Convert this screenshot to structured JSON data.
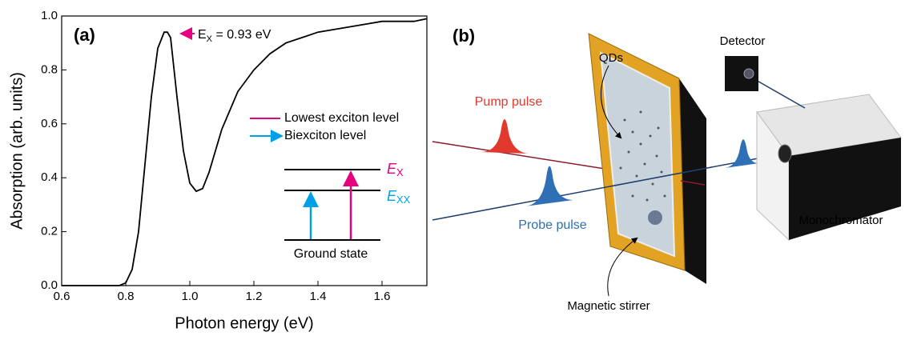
{
  "chart_data": {
    "type": "line",
    "panel_label": "(a)",
    "x_label": "Photon energy (eV)",
    "y_label": "Absorption (arb. units)",
    "xlim": [
      0.6,
      1.74
    ],
    "ylim": [
      0,
      1
    ],
    "xticks": [
      0.6,
      0.8,
      {
        "value": 1,
        "label": "1.0"
      },
      1.2,
      1.4,
      1.6
    ],
    "yticks": [
      {
        "value": 0,
        "label": "0.0"
      },
      0.2,
      0.4,
      0.6,
      0.8,
      {
        "value": 1,
        "label": "1.0"
      }
    ],
    "x": [
      0.6,
      0.7,
      0.78,
      0.8,
      0.82,
      0.84,
      0.86,
      0.88,
      0.9,
      0.92,
      0.93,
      0.94,
      0.96,
      0.98,
      1.0,
      1.02,
      1.04,
      1.06,
      1.08,
      1.1,
      1.15,
      1.2,
      1.25,
      1.3,
      1.35,
      1.4,
      1.45,
      1.5,
      1.55,
      1.6,
      1.65,
      1.7,
      1.74
    ],
    "series": [
      {
        "color": "#000000",
        "values": [
          0.0,
          0.0,
          0.0,
          0.01,
          0.06,
          0.2,
          0.45,
          0.7,
          0.88,
          0.94,
          0.94,
          0.92,
          0.7,
          0.5,
          0.38,
          0.35,
          0.36,
          0.42,
          0.5,
          0.58,
          0.72,
          0.8,
          0.86,
          0.9,
          0.92,
          0.94,
          0.95,
          0.96,
          0.97,
          0.98,
          0.98,
          0.98,
          0.99
        ]
      }
    ],
    "peak_label": {
      "symbol": "E",
      "subscript": "X",
      "text": " = 0.93 eV",
      "color": "#e4007f"
    },
    "legend": [
      {
        "name": "Lowest exciton level",
        "color": "#e4007f"
      },
      {
        "name": "Biexciton level",
        "color": "#00a0e9"
      }
    ],
    "inset": {
      "exciton": {
        "symbol": "E",
        "subscript": "X"
      },
      "biexciton": {
        "symbol": "E",
        "subscript": "XX"
      },
      "ground": "Ground state"
    }
  },
  "diagram": {
    "panel_label": "(b)",
    "qds": "QDs",
    "pump": "Pump pulse",
    "probe": "Probe pulse",
    "detector": "Detector",
    "monochromator": "Monochromator",
    "stirrer": "Magnetic stirrer"
  }
}
